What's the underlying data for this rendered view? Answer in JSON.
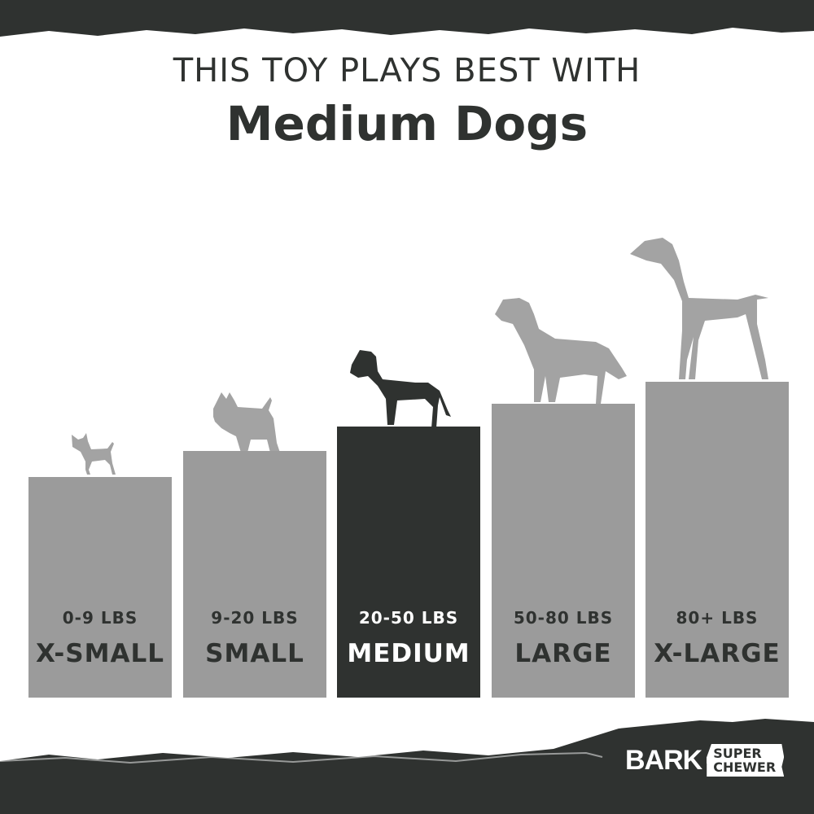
{
  "header": {
    "line1": "THIS TOY PLAYS BEST WITH",
    "line2": "Medium Dogs"
  },
  "sizes": [
    {
      "range": "0-9 LBS",
      "name": "X-SMALL",
      "active": false
    },
    {
      "range": "9-20 LBS",
      "name": "SMALL",
      "active": false
    },
    {
      "range": "20-50 LBS",
      "name": "MEDIUM",
      "active": true
    },
    {
      "range": "50-80 LBS",
      "name": "LARGE",
      "active": false
    },
    {
      "range": "80+ LBS",
      "name": "X-LARGE",
      "active": false
    }
  ],
  "logo": {
    "brand": "BARK",
    "sub1": "SUPER",
    "sub2": "CHEWER"
  },
  "colors": {
    "dark": "#2f3230",
    "gray": "#9b9b9b",
    "dog_gray": "#a3a3a3"
  }
}
